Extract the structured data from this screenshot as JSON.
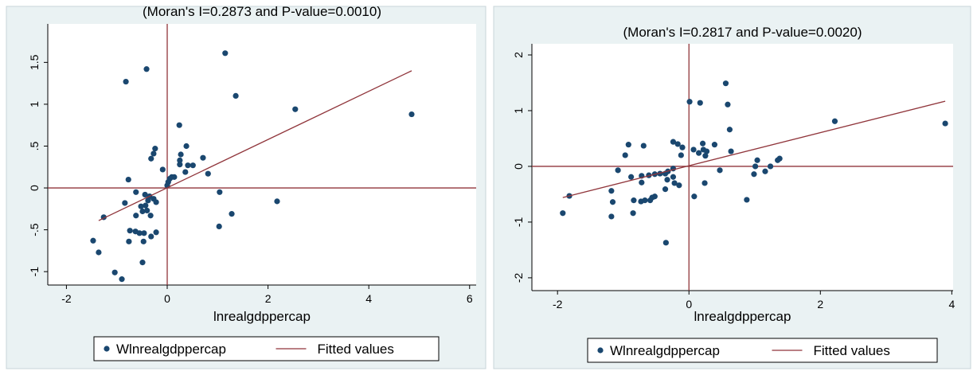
{
  "chart_data": [
    {
      "type": "scatter",
      "title": "(Moran's I=0.2873 and P-value=0.0010)",
      "x_label": "lnrealgdppercap",
      "xlim": [
        -2.37,
        6.13
      ],
      "ylim": [
        -1.16,
        1.96
      ],
      "xticks": [
        -2,
        0,
        2,
        4,
        6
      ],
      "yticks": [
        {
          "value": -1,
          "label": "-1"
        },
        {
          "value": -0.5,
          "label": "-.5"
        },
        0,
        {
          "value": 0.5,
          "label": ".5"
        },
        1,
        1.5
      ],
      "xline": 0,
      "yline": 0,
      "reference_line_color": "#90353b",
      "series": [
        {
          "name": "Wlnrealgdppercap",
          "type": "scatter",
          "color": "#1a476f",
          "x": [
            1.15,
            -0.41,
            -0.82,
            1.36,
            2.54,
            4.85,
            0.24,
            -0.24,
            -0.27,
            0.38,
            0.71,
            0.27,
            0.25,
            0.25,
            -0.32,
            -0.09,
            0.41,
            0.51,
            0.36,
            0.81,
            0.09,
            0.14,
            0.05,
            -0.77,
            0.02,
            0,
            1.04,
            -0.62,
            -0.44,
            -0.35,
            -0.38,
            -0.27,
            -0.43,
            -0.84,
            -0.52,
            -0.22,
            -0.49,
            -0.4,
            2.18,
            -0.62,
            -0.33,
            -1.26,
            1.28,
            -0.74,
            -0.63,
            -0.55,
            -0.22,
            -0.46,
            1.03,
            -0.32,
            -0.76,
            -1.47,
            -0.47,
            -1.36,
            -0.49,
            -1.04,
            -0.9
          ],
          "values": [
            1.61,
            1.42,
            1.27,
            1.1,
            0.94,
            0.88,
            0.75,
            0.47,
            0.41,
            0.5,
            0.36,
            0.4,
            0.33,
            0.28,
            0.35,
            0.22,
            0.27,
            0.27,
            0.19,
            0.17,
            0.13,
            0.13,
            0.11,
            0.1,
            0.07,
            0.03,
            -0.05,
            -0.05,
            -0.08,
            -0.1,
            -0.15,
            -0.13,
            -0.21,
            -0.18,
            -0.22,
            -0.17,
            -0.28,
            -0.27,
            -0.16,
            -0.33,
            -0.33,
            -0.35,
            -0.31,
            -0.51,
            -0.52,
            -0.54,
            -0.53,
            -0.54,
            -0.46,
            -0.58,
            -0.64,
            -0.63,
            -0.64,
            -0.77,
            -0.89,
            -1.01,
            -1.09
          ]
        },
        {
          "name": "Fitted values",
          "type": "line",
          "color": "#90353b",
          "x": [
            -1.36,
            4.85
          ],
          "values": [
            -0.39,
            1.4
          ]
        }
      ]
    },
    {
      "type": "scatter",
      "title": "(Moran's I=0.2817 and P-value=0.0020)",
      "x_label": "lnrealgdppercap",
      "xlim": [
        -2.39,
        4.02
      ],
      "ylim": [
        -2.23,
        2.2
      ],
      "xticks": [
        -2,
        0,
        2,
        4
      ],
      "yticks": [
        -2,
        -1,
        0,
        1,
        2
      ],
      "xline": 0,
      "yline": 0,
      "reference_line_color": "#90353b",
      "series": [
        {
          "name": "Wlnrealgdppercap",
          "type": "scatter",
          "color": "#1a476f",
          "x": [
            0.56,
            0.17,
            0.01,
            0.59,
            0.62,
            2.22,
            3.9,
            0.07,
            -0.24,
            -0.17,
            -0.1,
            0.21,
            0.39,
            0.64,
            0.15,
            0.22,
            0.27,
            0.25,
            -0.69,
            -0.92,
            -0.97,
            -0.12,
            1.04,
            1.38,
            1.35,
            1.01,
            1.24,
            1.16,
            0.99,
            0.47,
            -0.24,
            -0.32,
            -1.08,
            -0.44,
            -0.52,
            -0.61,
            -0.72,
            -0.36,
            -0.88,
            -0.24,
            -0.33,
            -0.15,
            -0.22,
            0.24,
            0.08,
            -0.72,
            -1.18,
            -0.36,
            -0.52,
            -0.73,
            -0.84,
            -0.67,
            -0.59,
            -0.56,
            -1.16,
            0.88,
            -1.82,
            -1.92,
            -0.85,
            -1.18,
            -0.35
          ],
          "values": [
            1.49,
            1.14,
            1.16,
            1.11,
            0.66,
            0.81,
            0.77,
            0.3,
            0.44,
            0.4,
            0.34,
            0.41,
            0.39,
            0.27,
            0.24,
            0.3,
            0.27,
            0.19,
            0.37,
            0.39,
            0.2,
            0.2,
            0.11,
            0.14,
            0.11,
            0,
            0,
            -0.09,
            -0.14,
            -0.07,
            -0.04,
            -0.09,
            -0.07,
            -0.13,
            -0.14,
            -0.16,
            -0.17,
            -0.13,
            -0.19,
            -0.19,
            -0.24,
            -0.34,
            -0.3,
            -0.3,
            -0.54,
            -0.29,
            -0.44,
            -0.41,
            -0.54,
            -0.63,
            -0.61,
            -0.61,
            -0.61,
            -0.56,
            -0.64,
            -0.6,
            -0.53,
            -0.84,
            -0.84,
            -0.9,
            -1.37
          ]
        },
        {
          "name": "Fitted values",
          "type": "line",
          "color": "#90353b",
          "x": [
            -1.92,
            3.9
          ],
          "values": [
            -0.56,
            1.17
          ]
        }
      ]
    }
  ]
}
